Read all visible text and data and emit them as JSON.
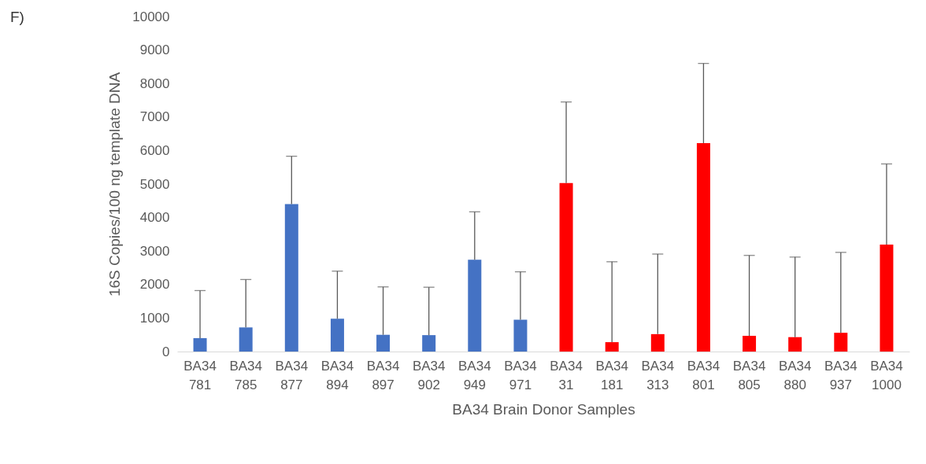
{
  "chart_data": {
    "type": "bar",
    "annotations": [
      "F)"
    ],
    "xlabel": "BA34 Brain Donor Samples",
    "ylabel": "16S Copies/100 ng template DNA",
    "categories": [
      "BA34 781",
      "BA34 785",
      "BA34 877",
      "BA34 894",
      "BA34 897",
      "BA34 902",
      "BA34 949",
      "BA34 971",
      "BA34 31",
      "BA34 181",
      "BA34 313",
      "BA34 801",
      "BA34 805",
      "BA34 880",
      "BA34 937",
      "BA34 1000"
    ],
    "values": [
      400,
      720,
      4400,
      980,
      500,
      490,
      2740,
      950,
      5030,
      280,
      520,
      6220,
      470,
      430,
      560,
      3190
    ],
    "errors": [
      [
        400,
        1820
      ],
      [
        720,
        2150
      ],
      [
        4400,
        5830
      ],
      [
        980,
        2400
      ],
      [
        500,
        1930
      ],
      [
        490,
        1920
      ],
      [
        2740,
        4170
      ],
      [
        950,
        2380
      ],
      [
        5030,
        7450
      ],
      [
        280,
        2680
      ],
      [
        520,
        2910
      ],
      [
        6220,
        8600
      ],
      [
        470,
        2870
      ],
      [
        430,
        2820
      ],
      [
        560,
        2960
      ],
      [
        3190,
        5600
      ]
    ],
    "colors": [
      "#4472c4",
      "#4472c4",
      "#4472c4",
      "#4472c4",
      "#4472c4",
      "#4472c4",
      "#4472c4",
      "#4472c4",
      "#ff0000",
      "#ff0000",
      "#ff0000",
      "#ff0000",
      "#ff0000",
      "#ff0000",
      "#ff0000",
      "#ff0000"
    ],
    "ylim": [
      0,
      10000
    ],
    "yticks": [
      0,
      1000,
      2000,
      3000,
      4000,
      5000,
      6000,
      7000,
      8000,
      9000,
      10000
    ],
    "grid": false
  }
}
